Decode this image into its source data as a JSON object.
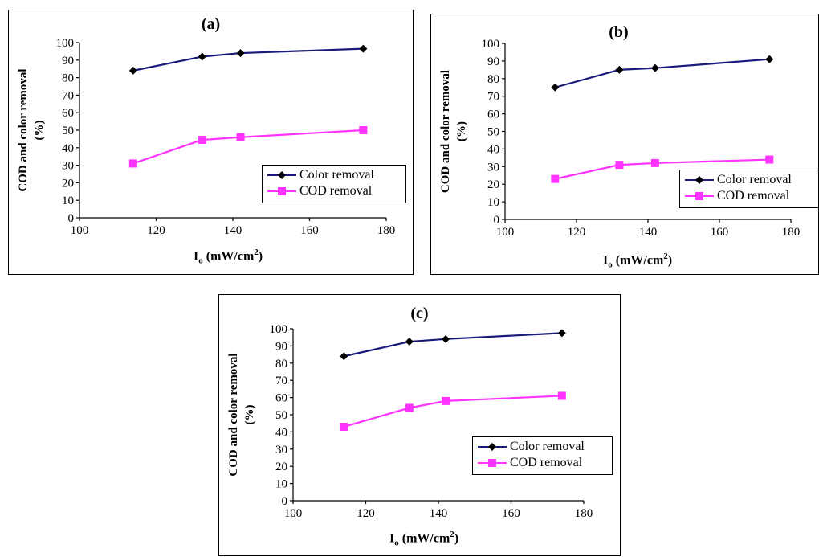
{
  "panels": [
    {
      "title": "(a)",
      "ylabel_line1": "COD and color removal",
      "ylabel_line2": "(%)",
      "xlabel_main": "I",
      "xlabel_sub": "o",
      "xlabel_unit": " (mW/cm",
      "xlabel_sup": "2",
      "xlabel_close": ")",
      "legend": [
        "Color removal",
        "COD removal"
      ]
    },
    {
      "title": "(b)",
      "ylabel_line1": "COD and color removal",
      "ylabel_line2": "(%)",
      "xlabel_main": "I",
      "xlabel_sub": "o",
      "xlabel_unit": " (mW/cm",
      "xlabel_sup": "2",
      "xlabel_close": ")",
      "legend": [
        "Color removal",
        "COD removal"
      ]
    },
    {
      "title": "(c)",
      "ylabel_line1": "COD and color removal",
      "ylabel_line2": "(%)",
      "xlabel_main": "I",
      "xlabel_sub": "o",
      "xlabel_unit": " (mW/cm",
      "xlabel_sup": "2",
      "xlabel_close": ")",
      "legend": [
        "Color removal",
        "COD removal"
      ]
    }
  ],
  "colors": {
    "color_removal": "#1a1a7a",
    "cod_removal": "#ff33ff"
  },
  "chart_data": [
    {
      "type": "line",
      "title": "(a)",
      "xlabel": "Io (mW/cm2)",
      "ylabel": "COD and color removal (%)",
      "xlim": [
        100,
        180
      ],
      "ylim": [
        0,
        100
      ],
      "xticks": [
        100,
        120,
        140,
        160,
        180
      ],
      "yticks": [
        0,
        10,
        20,
        30,
        40,
        50,
        60,
        70,
        80,
        90,
        100
      ],
      "grid": false,
      "legend_position": "right",
      "series": [
        {
          "name": "Color removal",
          "marker": "diamond",
          "x": [
            114,
            132,
            142,
            174
          ],
          "y": [
            84,
            92,
            94,
            96.5
          ]
        },
        {
          "name": "COD removal",
          "marker": "square",
          "x": [
            114,
            132,
            142,
            174
          ],
          "y": [
            31,
            44.5,
            46,
            50
          ]
        }
      ]
    },
    {
      "type": "line",
      "title": "(b)",
      "xlabel": "Io (mW/cm2)",
      "ylabel": "COD and color removal (%)",
      "xlim": [
        100,
        180
      ],
      "ylim": [
        0,
        100
      ],
      "xticks": [
        100,
        120,
        140,
        160,
        180
      ],
      "yticks": [
        0,
        10,
        20,
        30,
        40,
        50,
        60,
        70,
        80,
        90,
        100
      ],
      "grid": false,
      "legend_position": "right",
      "series": [
        {
          "name": "Color removal",
          "marker": "diamond",
          "x": [
            114,
            132,
            142,
            174
          ],
          "y": [
            75,
            85,
            86,
            91
          ]
        },
        {
          "name": "COD removal",
          "marker": "square",
          "x": [
            114,
            132,
            142,
            174
          ],
          "y": [
            23,
            31,
            32,
            34
          ]
        }
      ]
    },
    {
      "type": "line",
      "title": "(c)",
      "xlabel": "Io (mW/cm2)",
      "ylabel": "COD and color removal (%)",
      "xlim": [
        100,
        180
      ],
      "ylim": [
        0,
        100
      ],
      "xticks": [
        100,
        120,
        140,
        160,
        180
      ],
      "yticks": [
        0,
        10,
        20,
        30,
        40,
        50,
        60,
        70,
        80,
        90,
        100
      ],
      "grid": false,
      "legend_position": "right",
      "series": [
        {
          "name": "Color removal",
          "marker": "diamond",
          "x": [
            114,
            132,
            142,
            174
          ],
          "y": [
            84,
            92.5,
            94,
            97.5
          ]
        },
        {
          "name": "COD removal",
          "marker": "square",
          "x": [
            114,
            132,
            142,
            174
          ],
          "y": [
            43,
            54,
            58,
            61
          ]
        }
      ]
    }
  ]
}
